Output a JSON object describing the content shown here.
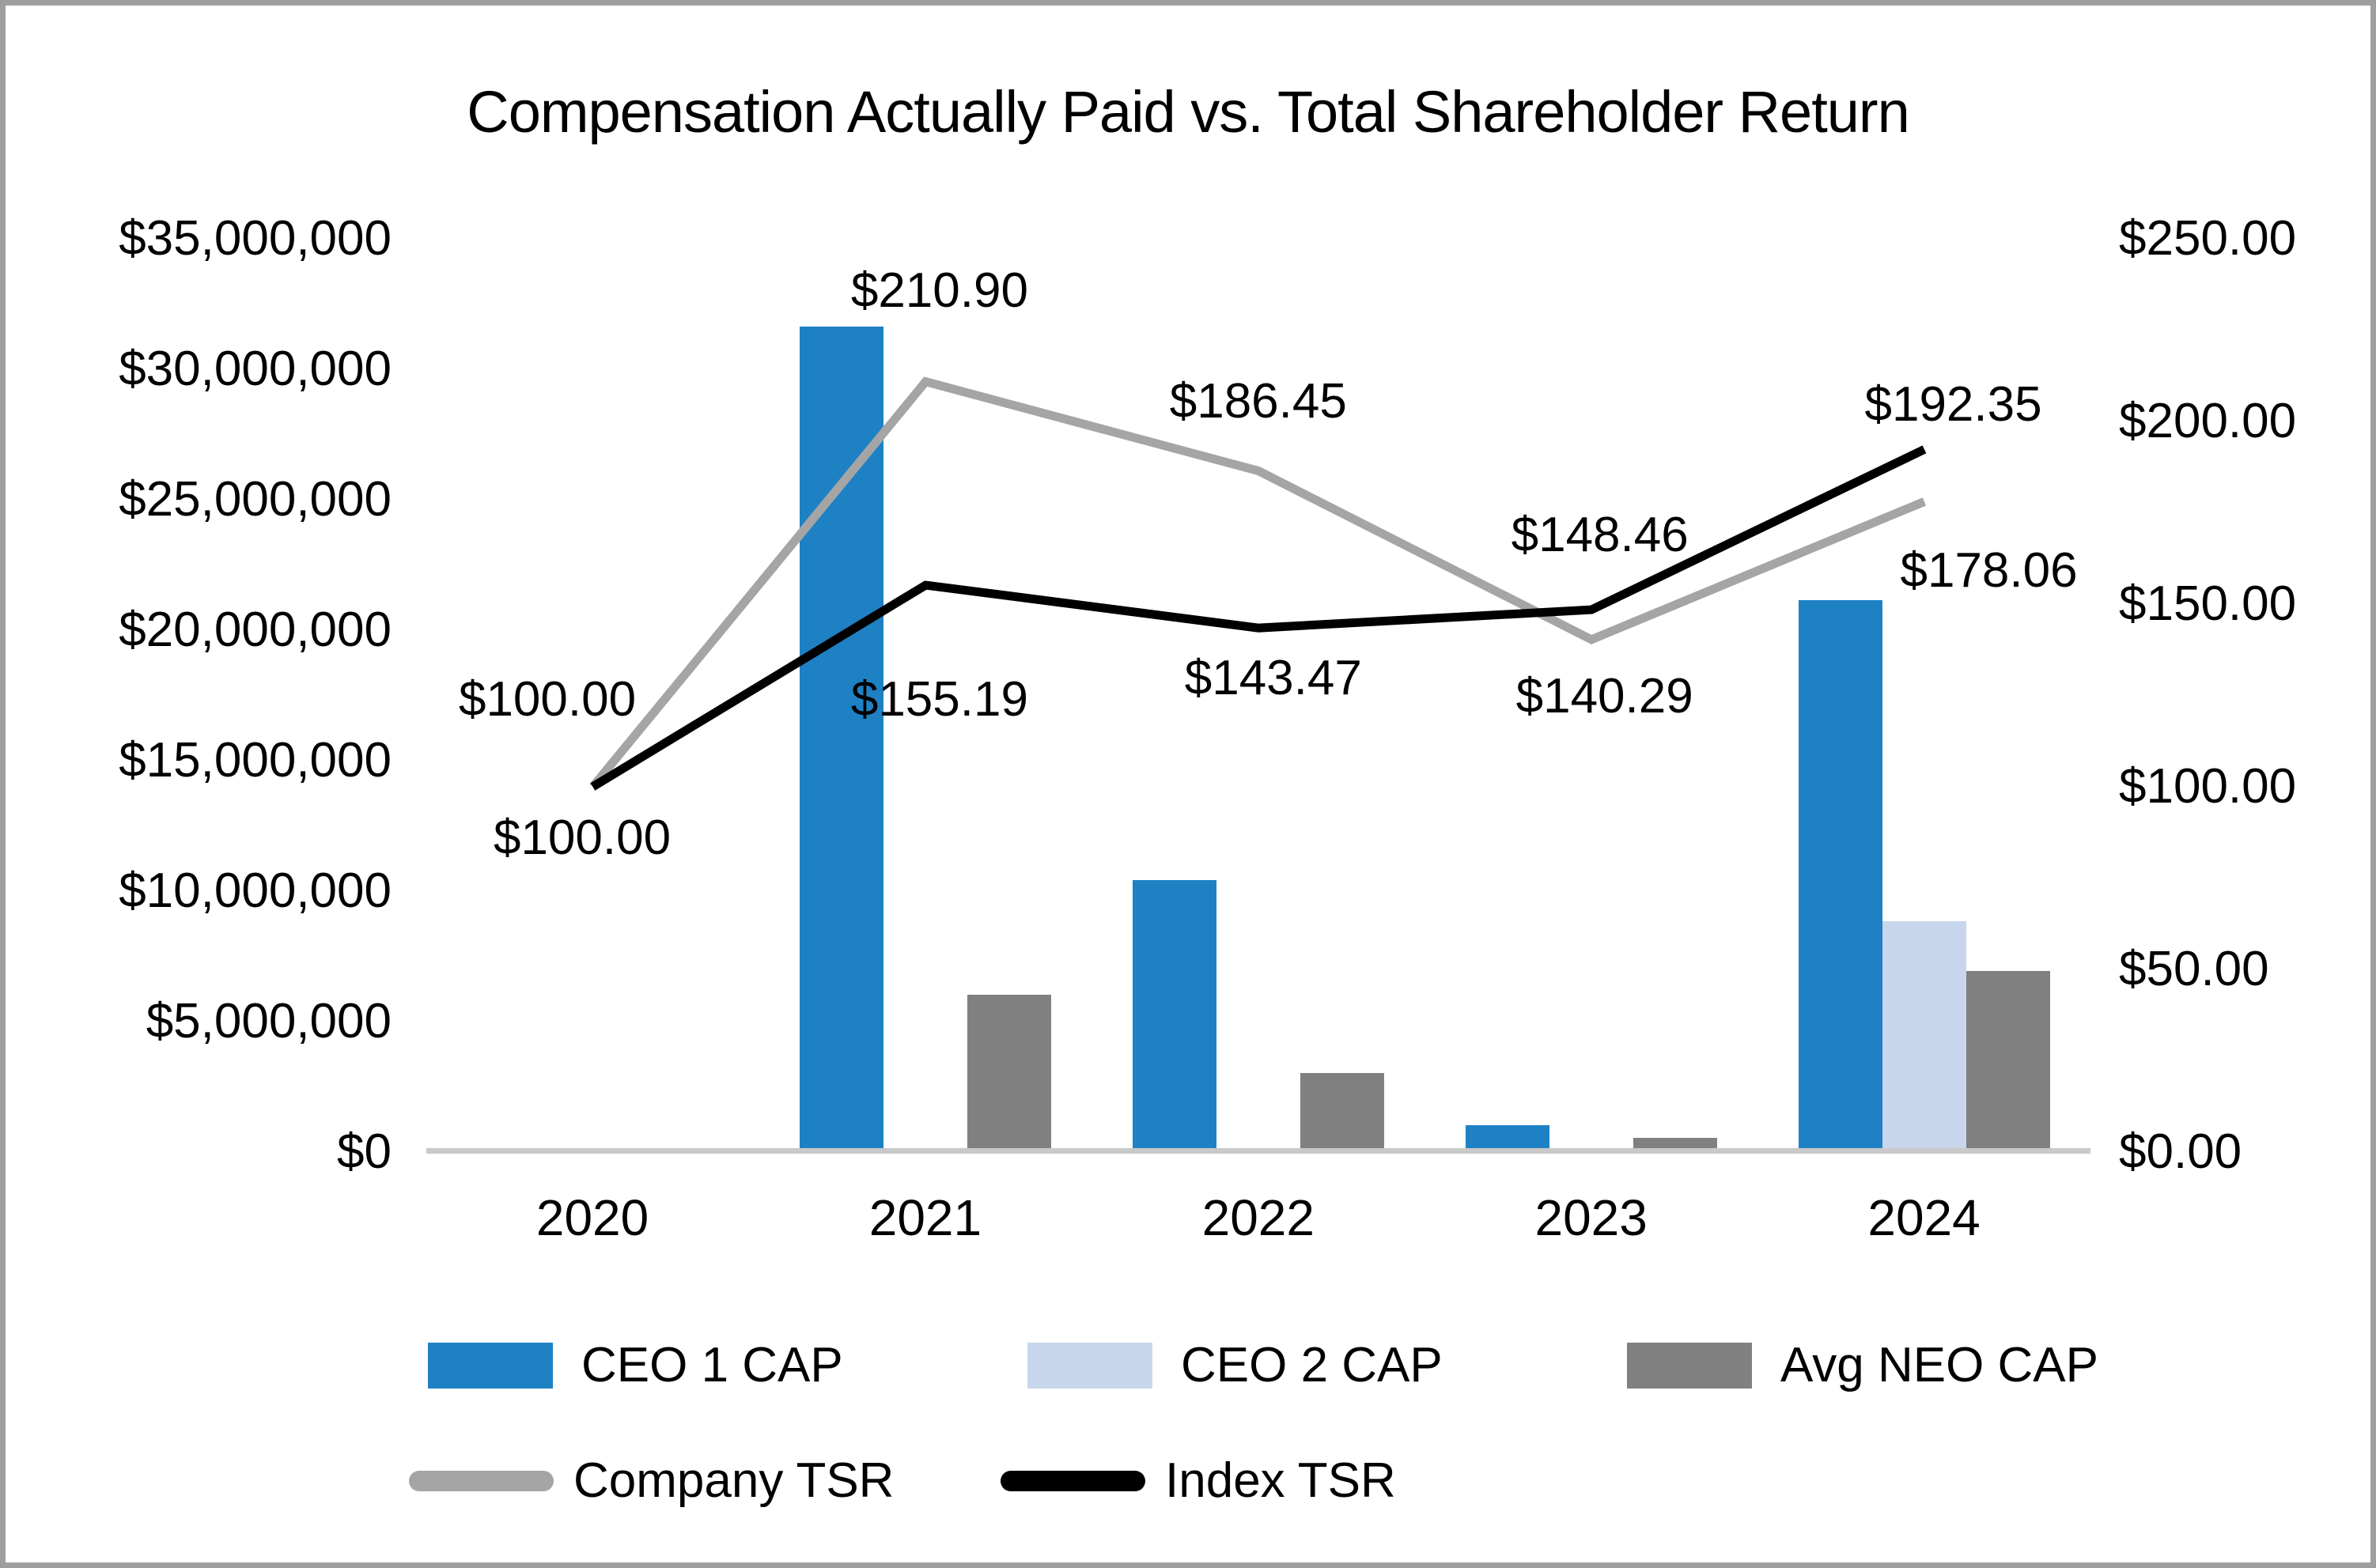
{
  "chart_data": {
    "type": "combo-bar-line",
    "title": "Compensation Actually Paid vs. Total Shareholder Return",
    "categories": [
      "2020",
      "2021",
      "2022",
      "2023",
      "2024"
    ],
    "bar_series": [
      {
        "name": "CEO 1 CAP",
        "color": "#1E81C4",
        "values": [
          0,
          31700000,
          10500000,
          1100000,
          21200000
        ]
      },
      {
        "name": "CEO 2 CAP",
        "color": "#C7D6EC",
        "values": [
          0,
          0,
          0,
          0,
          8900000
        ]
      },
      {
        "name": "Avg NEO CAP",
        "color": "#808080",
        "values": [
          0,
          6100000,
          3100000,
          600000,
          7000000
        ]
      }
    ],
    "line_series": [
      {
        "name": "Company TSR",
        "color": "#A5A5A5",
        "values": [
          100.0,
          210.9,
          186.45,
          140.29,
          178.06
        ],
        "point_labels": [
          "$100.00",
          "$210.90",
          "$186.45",
          "$140.29",
          "$178.06"
        ]
      },
      {
        "name": "Index TSR",
        "color": "#000000",
        "values": [
          100.0,
          155.19,
          143.47,
          148.46,
          192.35
        ],
        "point_labels": [
          "$100.00",
          "$155.19",
          "$143.47",
          "$148.46",
          "$192.35"
        ]
      }
    ],
    "left_axis": {
      "max": 35000000,
      "min": 0,
      "ticks": [
        "$35,000,000",
        "$30,000,000",
        "$25,000,000",
        "$20,000,000",
        "$15,000,000",
        "$10,000,000",
        "$5,000,000",
        "$0"
      ]
    },
    "right_axis": {
      "max": 250,
      "min": 0,
      "ticks": [
        "$250.00",
        "$200.00",
        "$150.00",
        "$100.00",
        "$50.00",
        "$0.00"
      ]
    },
    "axis_line_color": "#C9C9C9",
    "grid": "off",
    "legend_position": "bottom"
  }
}
